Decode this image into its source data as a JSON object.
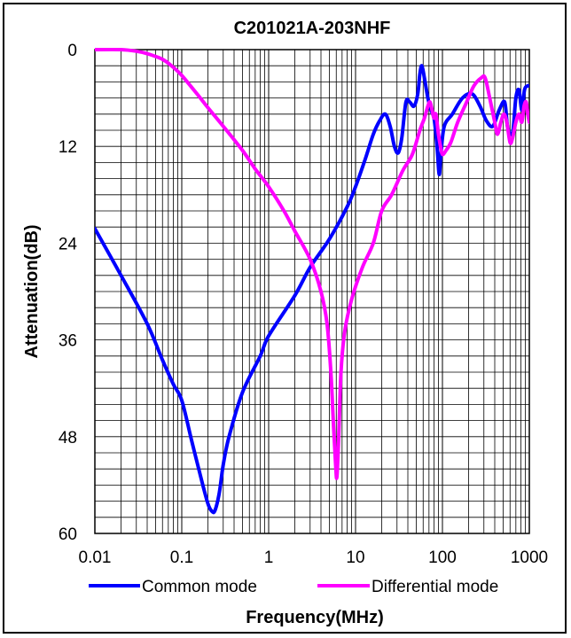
{
  "chart_data": {
    "type": "line",
    "title": "C201021A-203NHF",
    "xlabel": "Frequency(MHz)",
    "ylabel": "Attenuation(dB)",
    "x_scale": "log",
    "xlim": [
      0.01,
      1000
    ],
    "ylim": [
      0,
      60
    ],
    "y_inverted": true,
    "grid": true,
    "legend_position": "bottom",
    "x_ticks": [
      0.01,
      0.1,
      1,
      10,
      100,
      1000
    ],
    "x_tick_labels": [
      "0.01",
      "0.1",
      "1",
      "10",
      "100",
      "1000"
    ],
    "y_ticks": [
      0,
      12,
      24,
      36,
      48,
      60
    ],
    "y_tick_labels": [
      "0",
      "12",
      "24",
      "36",
      "48",
      "60"
    ],
    "series": [
      {
        "name": "Common mode",
        "color": "#0000ff",
        "points": [
          [
            0.01,
            22.2
          ],
          [
            0.02,
            28
          ],
          [
            0.04,
            34
          ],
          [
            0.06,
            38.5
          ],
          [
            0.08,
            41.5
          ],
          [
            0.1,
            43.5
          ],
          [
            0.13,
            48.5
          ],
          [
            0.17,
            53.5
          ],
          [
            0.2,
            56.3
          ],
          [
            0.22,
            57.2
          ],
          [
            0.24,
            57.2
          ],
          [
            0.27,
            55
          ],
          [
            0.3,
            51.5
          ],
          [
            0.35,
            48
          ],
          [
            0.5,
            42.5
          ],
          [
            0.8,
            38
          ],
          [
            1,
            35.5
          ],
          [
            2,
            30.5
          ],
          [
            3,
            27
          ],
          [
            5,
            23.5
          ],
          [
            8,
            19.5
          ],
          [
            10,
            17
          ],
          [
            13,
            13.5
          ],
          [
            16,
            10.5
          ],
          [
            19,
            8.8
          ],
          [
            22,
            8
          ],
          [
            25,
            9.5
          ],
          [
            28,
            12
          ],
          [
            31,
            12.8
          ],
          [
            34,
            11
          ],
          [
            38,
            6.5
          ],
          [
            42,
            6.5
          ],
          [
            47,
            7
          ],
          [
            52,
            5.5
          ],
          [
            55,
            3
          ],
          [
            58,
            2
          ],
          [
            62,
            3.5
          ],
          [
            68,
            6
          ],
          [
            74,
            7.5
          ],
          [
            80,
            8.5
          ],
          [
            85,
            11
          ],
          [
            88,
            13
          ],
          [
            92,
            15.5
          ],
          [
            96,
            13
          ],
          [
            105,
            9.5
          ],
          [
            130,
            8
          ],
          [
            170,
            6
          ],
          [
            220,
            5.5
          ],
          [
            270,
            7
          ],
          [
            320,
            8.8
          ],
          [
            380,
            9.5
          ],
          [
            450,
            7.5
          ],
          [
            520,
            6.5
          ],
          [
            560,
            9.5
          ],
          [
            610,
            10.5
          ],
          [
            650,
            10
          ],
          [
            700,
            6
          ],
          [
            760,
            5
          ],
          [
            820,
            7.5
          ],
          [
            880,
            5
          ],
          [
            950,
            4.5
          ],
          [
            1000,
            4.5
          ]
        ]
      },
      {
        "name": "Differential mode",
        "color": "#ff00ff",
        "points": [
          [
            0.01,
            0
          ],
          [
            0.02,
            0
          ],
          [
            0.03,
            0.2
          ],
          [
            0.04,
            0.5
          ],
          [
            0.06,
            1.2
          ],
          [
            0.08,
            2.2
          ],
          [
            0.1,
            3.2
          ],
          [
            0.15,
            5.5
          ],
          [
            0.2,
            7.2
          ],
          [
            0.3,
            9.5
          ],
          [
            0.5,
            12.5
          ],
          [
            0.7,
            14.8
          ],
          [
            1,
            17
          ],
          [
            1.5,
            20
          ],
          [
            2,
            22.5
          ],
          [
            3,
            26
          ],
          [
            4,
            30
          ],
          [
            4.7,
            34
          ],
          [
            5.2,
            40
          ],
          [
            5.6,
            47
          ],
          [
            5.9,
            51.5
          ],
          [
            6.1,
            53
          ],
          [
            6.4,
            48
          ],
          [
            6.8,
            40
          ],
          [
            7.5,
            35
          ],
          [
            9,
            31
          ],
          [
            12,
            27
          ],
          [
            16,
            24
          ],
          [
            20,
            20
          ],
          [
            26,
            18
          ],
          [
            35,
            15
          ],
          [
            45,
            13
          ],
          [
            55,
            10
          ],
          [
            62,
            8.5
          ],
          [
            68,
            7
          ],
          [
            72,
            6.5
          ],
          [
            76,
            7.5
          ],
          [
            80,
            8.5
          ],
          [
            84,
            8
          ],
          [
            90,
            10.5
          ],
          [
            95,
            12
          ],
          [
            100,
            13
          ],
          [
            110,
            12.5
          ],
          [
            125,
            11.5
          ],
          [
            150,
            9
          ],
          [
            190,
            6.5
          ],
          [
            230,
            4.5
          ],
          [
            280,
            3.5
          ],
          [
            310,
            3.5
          ],
          [
            350,
            6
          ],
          [
            400,
            9
          ],
          [
            430,
            10.5
          ],
          [
            470,
            9
          ],
          [
            510,
            8
          ],
          [
            550,
            9
          ],
          [
            600,
            11.5
          ],
          [
            640,
            11
          ],
          [
            700,
            9
          ],
          [
            760,
            8
          ],
          [
            820,
            9
          ],
          [
            870,
            7
          ],
          [
            920,
            6.5
          ],
          [
            960,
            8
          ],
          [
            1000,
            9
          ]
        ]
      }
    ]
  }
}
